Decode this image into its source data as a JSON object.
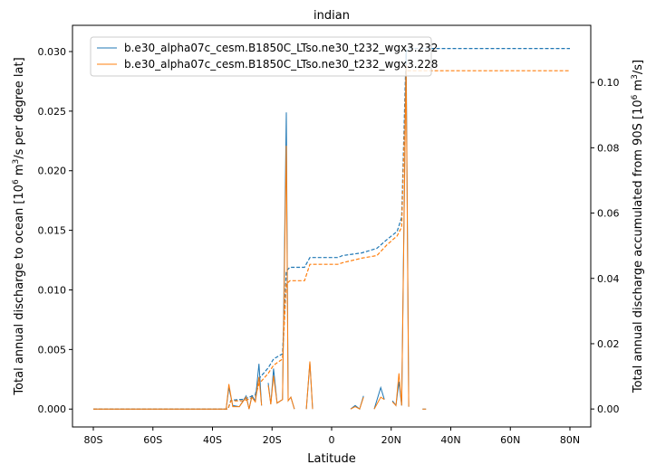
{
  "chart_data": {
    "type": "line",
    "title": "indian",
    "xlabel": "Latitude",
    "ylabel": "Total annual discharge to ocean [10^6 m^3/s per degree lat]",
    "ylabel_right": "Total annual discharge accumulated from 90S [10^6 m^3/s]",
    "xlim": [
      -87,
      87
    ],
    "ylim": [
      -0.0015,
      0.0322
    ],
    "ylim_right": [
      -0.0055,
      0.1175
    ],
    "x_ticks": [
      -80,
      -60,
      -40,
      -20,
      0,
      20,
      40,
      60,
      80
    ],
    "x_tick_labels": [
      "80S",
      "60S",
      "40S",
      "20S",
      "0",
      "20N",
      "40N",
      "60N",
      "80N"
    ],
    "y_ticks": [
      0,
      0.005,
      0.01,
      0.015,
      0.02,
      0.025,
      0.03
    ],
    "y_tick_labels": [
      "0.000",
      "0.005",
      "0.010",
      "0.015",
      "0.020",
      "0.025",
      "0.030"
    ],
    "y_ticks_right": [
      0,
      0.02,
      0.04,
      0.06,
      0.08,
      0.1
    ],
    "y_tick_labels_right": [
      "0.00",
      "0.02",
      "0.04",
      "0.06",
      "0.08",
      "0.10"
    ],
    "grid": false,
    "legend_position": "top-left",
    "series": [
      {
        "name": "b.e30_alpha07c_cesm.B1850C_LTso.ne30_t232_wgx3.232",
        "color": "#1f77b4",
        "lat": [
          -80,
          -36,
          -35.4,
          -34.5,
          -33.2,
          -31,
          -28.7,
          -27.7,
          -26.8,
          -25.6,
          -24.4,
          -23.5,
          -22.4,
          -21.3,
          -20.4,
          -19.5,
          -18.3,
          -16.5,
          -15.2,
          -14.6,
          -13.7,
          -12.5,
          -11,
          -8.5,
          -7.3,
          -6.4,
          -5,
          6.4,
          7.9,
          9.4,
          10.7,
          12,
          14.3,
          16.5,
          17.7,
          19,
          20.4,
          21.6,
          22.6,
          23.5,
          25.0,
          25.9,
          27,
          30.5,
          31.7
        ],
        "discharge": [
          0,
          0,
          0,
          0.0018,
          0.0003,
          0.0002,
          0.0011,
          0,
          0.0011,
          0.0007,
          0.0038,
          0.0003,
          null,
          0.0022,
          0.0004,
          0.0034,
          0.0005,
          0.0008,
          0.0249,
          0.0007,
          0.001,
          0,
          null,
          0,
          0.0039,
          0,
          null,
          0,
          0.0003,
          0,
          0.0011,
          null,
          0,
          0.0018,
          0.0008,
          null,
          0.0007,
          0.0003,
          0.0023,
          0.0003,
          0.0302,
          0.0002,
          null,
          0,
          0
        ],
        "cumulative_lat": [
          -80,
          -34.8,
          -33.8,
          -29.3,
          -25.6,
          -24.4,
          -21.3,
          -19.5,
          -16.5,
          -15.2,
          -14.0,
          -9.1,
          -7.3,
          2.1,
          3.7,
          10.1,
          15.2,
          18.6,
          22.0,
          23.5,
          25.0,
          26.0,
          80
        ],
        "cumulative": [
          0,
          0,
          0.0027,
          0.003,
          0.0044,
          0.0093,
          0.0126,
          0.0153,
          0.0169,
          0.0423,
          0.0434,
          0.0434,
          0.0464,
          0.0464,
          0.047,
          0.0478,
          0.0492,
          0.0519,
          0.0544,
          0.0587,
          0.1093,
          0.1104,
          0.1104
        ]
      },
      {
        "name": "b.e30_alpha07c_cesm.B1850C_LTso.ne30_t232_wgx3.228",
        "color": "#ff7f0e",
        "lat": [
          -80,
          -36,
          -35.4,
          -34.5,
          -33.2,
          -31,
          -28.7,
          -27.7,
          -26.8,
          -25.6,
          -24.4,
          -23.5,
          -22.4,
          -21.3,
          -20.4,
          -19.5,
          -18.3,
          -16.5,
          -15.2,
          -14.6,
          -13.7,
          -12.5,
          -11,
          -8.5,
          -7.3,
          -6.4,
          -5,
          6.4,
          7.9,
          9.4,
          10.7,
          12,
          14.3,
          16.5,
          17.7,
          19,
          20.4,
          21.6,
          22.6,
          23.5,
          25.0,
          25.9,
          27,
          30.5,
          31.7
        ],
        "discharge": [
          0,
          0,
          0,
          0.0021,
          0.0002,
          0.0002,
          0.001,
          0,
          0.001,
          0.0006,
          0.0027,
          0.0003,
          null,
          0.002,
          0.0004,
          0.0028,
          0.0005,
          0.0008,
          0.0221,
          0.0007,
          0.001,
          0,
          null,
          0,
          0.004,
          0,
          null,
          0,
          0.0002,
          0,
          0.001,
          null,
          0,
          0.001,
          0.0008,
          null,
          0.0006,
          0.0003,
          0.003,
          0.0003,
          0.0289,
          0.0002,
          null,
          0,
          0
        ],
        "cumulative_lat": [
          -80,
          -34.8,
          -33.8,
          -29.3,
          -25.6,
          -24.4,
          -21.3,
          -19.5,
          -16.5,
          -15.2,
          -14.0,
          -9.1,
          -7.3,
          2.1,
          3.7,
          10.1,
          15.2,
          18.6,
          22.0,
          23.5,
          25.0,
          26.0,
          80
        ],
        "cumulative": [
          0,
          0,
          0.0025,
          0.0025,
          0.0038,
          0.0077,
          0.0109,
          0.0134,
          0.0153,
          0.0383,
          0.0393,
          0.0393,
          0.0443,
          0.0443,
          0.0448,
          0.0462,
          0.047,
          0.0503,
          0.053,
          0.0557,
          0.1036,
          0.1036,
          0.1036
        ]
      }
    ]
  }
}
